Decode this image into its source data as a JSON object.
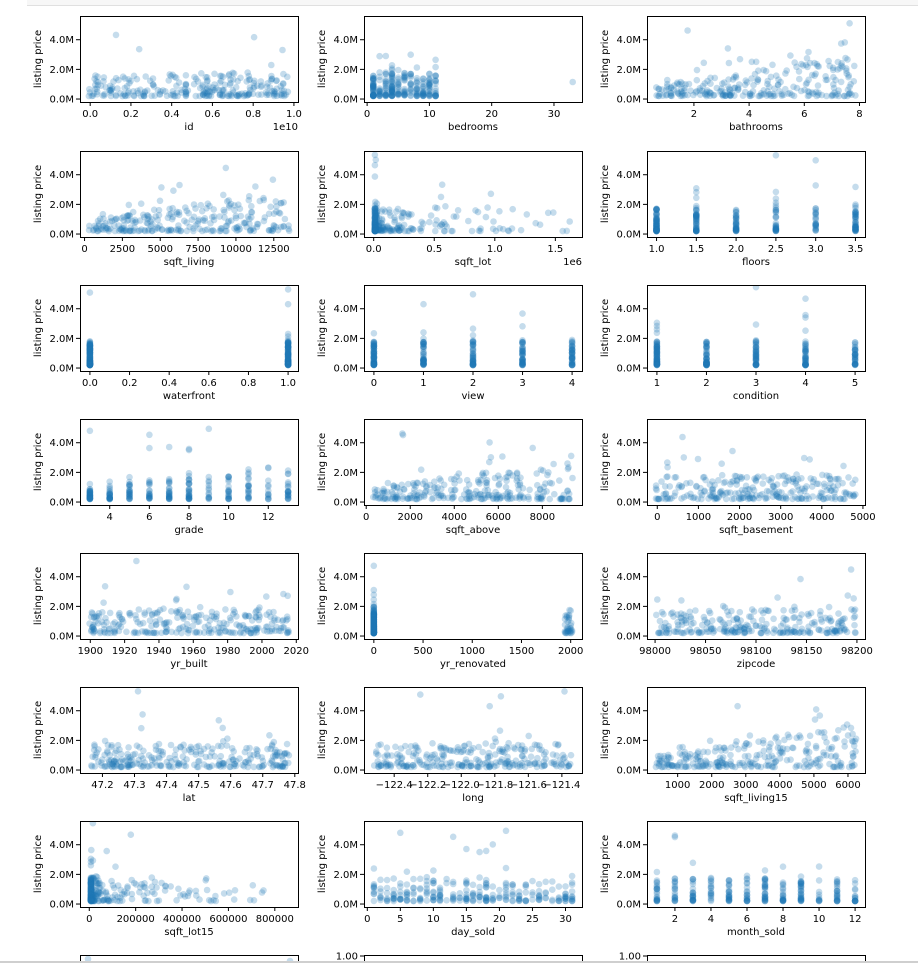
{
  "ylabel": "listing price",
  "y_ticks": [
    "0.0M",
    "2.0M",
    "4.0M"
  ],
  "partial_row_tick": "1.00",
  "colors": {
    "marker": "#1f77b4",
    "axis": "#000000"
  },
  "chart_data": [
    {
      "type": "scatter",
      "xlabel": "id",
      "xlim": [
        -0.05,
        1.02
      ],
      "xticks": [
        0.0,
        0.2,
        0.4,
        0.6,
        0.8,
        1.0
      ],
      "x_tick_labels": [
        "0.0",
        "0.2",
        "0.4",
        "0.6",
        "0.8",
        "1.0"
      ],
      "offset_text": "1e10",
      "gaps": [
        [
          0.48,
          0.51
        ],
        [
          0.62,
          0.63
        ]
      ],
      "ylabel": "listing price",
      "ylim": [
        -0.2,
        5.6
      ],
      "y_ticks": [
        0,
        2,
        4
      ]
    },
    {
      "type": "scatter",
      "xlabel": "bedrooms",
      "xlim": [
        -0.5,
        34.5
      ],
      "xticks": [
        0,
        10,
        20,
        30
      ],
      "x_tick_labels": [
        "0",
        "10",
        "20",
        "30"
      ],
      "ylabel": "listing price",
      "ylim": [
        -0.2,
        5.6
      ],
      "y_ticks": [
        0,
        2,
        4
      ],
      "discrete": [
        1,
        2,
        3,
        4,
        5,
        6,
        7,
        8,
        9,
        10,
        11,
        33
      ]
    },
    {
      "type": "scatter",
      "xlabel": "bathrooms",
      "xlim": [
        0.3,
        8.2
      ],
      "xticks": [
        2,
        4,
        6,
        8
      ],
      "x_tick_labels": [
        "2",
        "4",
        "6",
        "8"
      ],
      "ylabel": "listing price",
      "ylim": [
        -0.2,
        5.6
      ],
      "y_ticks": [
        0,
        2,
        4
      ]
    },
    {
      "type": "scatter",
      "xlabel": "sqft_living",
      "xlim": [
        -300,
        14100
      ],
      "xticks": [
        0,
        2500,
        5000,
        7500,
        10000,
        12500
      ],
      "x_tick_labels": [
        "0",
        "2500",
        "5000",
        "7500",
        "10000",
        "12500"
      ],
      "ylabel": "listing price",
      "ylim": [
        -0.2,
        5.6
      ],
      "y_ticks": [
        0,
        2,
        4
      ]
    },
    {
      "type": "scatter",
      "xlabel": "sqft_lot",
      "xlim": [
        -0.08,
        1.72
      ],
      "xticks": [
        0.0,
        0.5,
        1.0,
        1.5
      ],
      "x_tick_labels": [
        "0.0",
        "0.5",
        "1.0",
        "1.5"
      ],
      "offset_text": "1e6",
      "ylabel": "listing price",
      "ylim": [
        -0.2,
        5.6
      ],
      "y_ticks": [
        0,
        2,
        4
      ]
    },
    {
      "type": "scatter",
      "xlabel": "floors",
      "xlim": [
        0.88,
        3.62
      ],
      "xticks": [
        1.0,
        1.5,
        2.0,
        2.5,
        3.0,
        3.5
      ],
      "x_tick_labels": [
        "1.0",
        "1.5",
        "2.0",
        "2.5",
        "3.0",
        "3.5"
      ],
      "ylabel": "listing price",
      "ylim": [
        -0.2,
        5.6
      ],
      "y_ticks": [
        0,
        2,
        4
      ],
      "discrete": [
        1.0,
        1.5,
        2.0,
        2.5,
        3.0,
        3.5
      ]
    },
    {
      "type": "scatter",
      "xlabel": "waterfront",
      "xlim": [
        -0.05,
        1.05
      ],
      "xticks": [
        0.0,
        0.2,
        0.4,
        0.6,
        0.8,
        1.0
      ],
      "x_tick_labels": [
        "0.0",
        "0.2",
        "0.4",
        "0.6",
        "0.8",
        "1.0"
      ],
      "ylabel": "listing price",
      "ylim": [
        -0.2,
        5.6
      ],
      "y_ticks": [
        0,
        2,
        4
      ],
      "discrete": [
        0,
        1
      ]
    },
    {
      "type": "scatter",
      "xlabel": "view",
      "xlim": [
        -0.2,
        4.2
      ],
      "xticks": [
        0,
        1,
        2,
        3,
        4
      ],
      "x_tick_labels": [
        "0",
        "1",
        "2",
        "3",
        "4"
      ],
      "ylabel": "listing price",
      "ylim": [
        -0.2,
        5.6
      ],
      "y_ticks": [
        0,
        2,
        4
      ],
      "discrete": [
        0,
        1,
        2,
        3,
        4
      ]
    },
    {
      "type": "scatter",
      "xlabel": "condition",
      "xlim": [
        0.8,
        5.2
      ],
      "xticks": [
        1,
        2,
        3,
        4,
        5
      ],
      "x_tick_labels": [
        "1",
        "2",
        "3",
        "4",
        "5"
      ],
      "ylabel": "listing price",
      "ylim": [
        -0.2,
        5.6
      ],
      "y_ticks": [
        0,
        2,
        4
      ],
      "discrete": [
        1,
        2,
        3,
        4,
        5
      ]
    },
    {
      "type": "scatter",
      "xlabel": "grade",
      "xlim": [
        2.5,
        13.5
      ],
      "xticks": [
        4,
        6,
        8,
        10,
        12
      ],
      "x_tick_labels": [
        "4",
        "6",
        "8",
        "10",
        "12"
      ],
      "ylabel": "listing price",
      "ylim": [
        -0.2,
        5.6
      ],
      "y_ticks": [
        0,
        2,
        4
      ],
      "discrete": [
        3,
        4,
        5,
        6,
        7,
        8,
        9,
        10,
        11,
        12,
        13
      ]
    },
    {
      "type": "scatter",
      "xlabel": "sqft_above",
      "xlim": [
        -100,
        9800
      ],
      "xticks": [
        0,
        2000,
        4000,
        6000,
        8000
      ],
      "x_tick_labels": [
        "0",
        "2000",
        "4000",
        "6000",
        "8000"
      ],
      "ylabel": "listing price",
      "ylim": [
        -0.2,
        5.6
      ],
      "y_ticks": [
        0,
        2,
        4
      ]
    },
    {
      "type": "scatter",
      "xlabel": "sqft_basement",
      "xlim": [
        -250,
        5050
      ],
      "xticks": [
        0,
        1000,
        2000,
        3000,
        4000,
        5000
      ],
      "x_tick_labels": [
        "0",
        "1000",
        "2000",
        "3000",
        "4000",
        "5000"
      ],
      "ylabel": "listing price",
      "ylim": [
        -0.2,
        5.6
      ],
      "y_ticks": [
        0,
        2,
        4
      ]
    },
    {
      "type": "scatter",
      "xlabel": "yr_built",
      "xlim": [
        1894,
        2021
      ],
      "xticks": [
        1900,
        1920,
        1940,
        1960,
        1980,
        2000,
        2020
      ],
      "x_tick_labels": [
        "1900",
        "1920",
        "1940",
        "1960",
        "1980",
        "2000",
        "2020"
      ],
      "ylabel": "listing price",
      "ylim": [
        -0.2,
        5.6
      ],
      "y_ticks": [
        0,
        2,
        4
      ]
    },
    {
      "type": "scatter",
      "xlabel": "yr_renovated",
      "xlim": [
        -100,
        2115
      ],
      "xticks": [
        0,
        500,
        1000,
        1500,
        2000
      ],
      "x_tick_labels": [
        "0",
        "500",
        "1000",
        "1500",
        "2000"
      ],
      "ylabel": "listing price",
      "ylim": [
        -0.2,
        5.6
      ],
      "y_ticks": [
        0,
        2,
        4
      ]
    },
    {
      "type": "scatter",
      "xlabel": "zipcode",
      "xlim": [
        97992,
        98208
      ],
      "xticks": [
        98000,
        98050,
        98100,
        98150,
        98200
      ],
      "x_tick_labels": [
        "98000",
        "98050",
        "98100",
        "98150",
        "98200"
      ],
      "ylabel": "listing price",
      "ylim": [
        -0.2,
        5.6
      ],
      "y_ticks": [
        0,
        2,
        4
      ]
    },
    {
      "type": "scatter",
      "xlabel": "lat",
      "xlim": [
        47.13,
        47.81
      ],
      "xticks": [
        47.2,
        47.3,
        47.4,
        47.5,
        47.6,
        47.7,
        47.8
      ],
      "x_tick_labels": [
        "47.2",
        "47.3",
        "47.4",
        "47.5",
        "47.6",
        "47.7",
        "47.8"
      ],
      "ylabel": "listing price",
      "ylim": [
        -0.2,
        5.6
      ],
      "y_ticks": [
        0,
        2,
        4
      ]
    },
    {
      "type": "scatter",
      "xlabel": "long",
      "xlim": [
        -122.58,
        -121.28
      ],
      "xticks": [
        -122.4,
        -122.2,
        -122.0,
        -121.8,
        -121.6,
        -121.4
      ],
      "x_tick_labels": [
        "−122.4",
        "−122.2",
        "−122.0",
        "−121.8",
        "−121.6",
        "−121.4"
      ],
      "ylabel": "listing price",
      "ylim": [
        -0.2,
        5.6
      ],
      "y_ticks": [
        0,
        2,
        4
      ]
    },
    {
      "type": "scatter",
      "xlabel": "sqft_living15",
      "xlim": [
        100,
        6500
      ],
      "xticks": [
        1000,
        2000,
        3000,
        4000,
        5000,
        6000
      ],
      "x_tick_labels": [
        "1000",
        "2000",
        "3000",
        "4000",
        "5000",
        "6000"
      ],
      "ylabel": "listing price",
      "ylim": [
        -0.2,
        5.6
      ],
      "y_ticks": [
        0,
        2,
        4
      ]
    },
    {
      "type": "scatter",
      "xlabel": "sqft_lot15",
      "xlim": [
        -40000,
        900000
      ],
      "xticks": [
        0,
        200000,
        400000,
        600000,
        800000
      ],
      "x_tick_labels": [
        "0",
        "200000",
        "400000",
        "600000",
        "800000"
      ],
      "ylabel": "listing price",
      "ylim": [
        -0.2,
        5.6
      ],
      "y_ticks": [
        0,
        2,
        4
      ]
    },
    {
      "type": "scatter",
      "xlabel": "day_sold",
      "xlim": [
        -0.5,
        32.5
      ],
      "xticks": [
        0,
        5,
        10,
        15,
        20,
        25,
        30
      ],
      "x_tick_labels": [
        "0",
        "5",
        "10",
        "15",
        "20",
        "25",
        "30"
      ],
      "ylabel": "listing price",
      "ylim": [
        -0.2,
        5.6
      ],
      "y_ticks": [
        0,
        2,
        4
      ],
      "discrete_range": [
        1,
        31
      ]
    },
    {
      "type": "scatter",
      "xlabel": "month_sold",
      "xlim": [
        0.45,
        12.55
      ],
      "xticks": [
        2,
        4,
        6,
        8,
        10,
        12
      ],
      "x_tick_labels": [
        "2",
        "4",
        "6",
        "8",
        "10",
        "12"
      ],
      "ylabel": "listing price",
      "ylim": [
        -0.2,
        5.6
      ],
      "y_ticks": [
        0,
        2,
        4
      ],
      "discrete_range": [
        1,
        12
      ]
    }
  ]
}
